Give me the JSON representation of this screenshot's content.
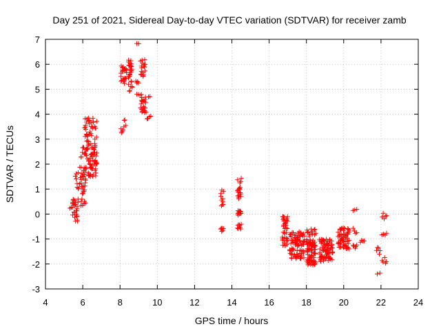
{
  "chart_data": {
    "type": "scatter",
    "title": "Day 251 of 2021, Sidereal Day-to-day VTEC variation (SDTVAR) for receiver zamb",
    "xlabel": "GPS time / hours",
    "ylabel": "SDTVAR / TECUs",
    "xlim": [
      4,
      24
    ],
    "ylim": [
      -3,
      7
    ],
    "grid": true,
    "marker": "+",
    "marker_color": "#ff0000",
    "x_ticks": [
      "4",
      "6",
      "8",
      "10",
      "12",
      "14",
      "16",
      "18",
      "20",
      "22",
      "24"
    ],
    "y_ticks": [
      "-3",
      "-2",
      "-1",
      "0",
      "1",
      "2",
      "3",
      "4",
      "5",
      "6",
      "7"
    ],
    "clusters": [
      {
        "x0": 5.3,
        "x1": 5.45,
        "y0": 0.2,
        "y1": 0.3,
        "n": 3
      },
      {
        "x0": 5.45,
        "x1": 5.75,
        "y0": -0.3,
        "y1": 0.6,
        "n": 30
      },
      {
        "x0": 5.6,
        "x1": 5.9,
        "y0": 0.9,
        "y1": 1.9,
        "n": 12
      },
      {
        "x0": 5.9,
        "x1": 6.15,
        "y0": 0.2,
        "y1": 1.9,
        "n": 30
      },
      {
        "x0": 5.9,
        "x1": 6.3,
        "y0": 2.2,
        "y1": 2.8,
        "n": 12
      },
      {
        "x0": 6.1,
        "x1": 6.75,
        "y0": 1.5,
        "y1": 3.85,
        "n": 95
      },
      {
        "x0": 6.4,
        "x1": 6.75,
        "y0": 1.8,
        "y1": 2.2,
        "n": 10
      },
      {
        "x0": 8.05,
        "x1": 8.3,
        "y0": 3.2,
        "y1": 3.8,
        "n": 8
      },
      {
        "x0": 8.05,
        "x1": 8.35,
        "y0": 5.2,
        "y1": 5.95,
        "n": 24
      },
      {
        "x0": 8.45,
        "x1": 8.65,
        "y0": 4.9,
        "y1": 6.3,
        "n": 28
      },
      {
        "x0": 8.85,
        "x1": 9.0,
        "y0": 5.25,
        "y1": 5.4,
        "n": 4
      },
      {
        "x0": 8.9,
        "x1": 9.0,
        "y0": 6.8,
        "y1": 6.85,
        "n": 2
      },
      {
        "x0": 8.9,
        "x1": 9.15,
        "y0": 4.7,
        "y1": 4.8,
        "n": 4
      },
      {
        "x0": 9.1,
        "x1": 9.35,
        "y0": 5.5,
        "y1": 6.2,
        "n": 18
      },
      {
        "x0": 9.1,
        "x1": 9.4,
        "y0": 4.0,
        "y1": 4.7,
        "n": 22
      },
      {
        "x0": 9.45,
        "x1": 9.65,
        "y0": 3.6,
        "y1": 4.85,
        "n": 6
      },
      {
        "x0": 13.4,
        "x1": 13.55,
        "y0": 0.2,
        "y1": 1.0,
        "n": 10
      },
      {
        "x0": 13.4,
        "x1": 13.55,
        "y0": -0.7,
        "y1": -0.55,
        "n": 6
      },
      {
        "x0": 14.3,
        "x1": 14.5,
        "y0": 0.6,
        "y1": 1.5,
        "n": 18
      },
      {
        "x0": 14.3,
        "x1": 14.5,
        "y0": -0.1,
        "y1": 0.15,
        "n": 10
      },
      {
        "x0": 14.3,
        "x1": 14.5,
        "y0": -0.6,
        "y1": -0.4,
        "n": 8
      },
      {
        "x0": 16.7,
        "x1": 17.0,
        "y0": -1.3,
        "y1": -0.1,
        "n": 40
      },
      {
        "x0": 17.1,
        "x1": 17.9,
        "y0": -1.8,
        "y1": -0.7,
        "n": 85
      },
      {
        "x0": 18.0,
        "x1": 18.5,
        "y0": -0.9,
        "y1": -0.5,
        "n": 14
      },
      {
        "x0": 18.0,
        "x1": 18.5,
        "y0": -2.05,
        "y1": -1.0,
        "n": 80
      },
      {
        "x0": 18.7,
        "x1": 19.4,
        "y0": -1.9,
        "y1": -1.0,
        "n": 80
      },
      {
        "x0": 19.7,
        "x1": 20.3,
        "y0": -1.4,
        "y1": -0.5,
        "n": 60
      },
      {
        "x0": 20.5,
        "x1": 20.7,
        "y0": 0.1,
        "y1": 0.25,
        "n": 3
      },
      {
        "x0": 20.5,
        "x1": 20.7,
        "y0": -0.8,
        "y1": -0.55,
        "n": 4
      },
      {
        "x0": 20.5,
        "x1": 20.7,
        "y0": -1.6,
        "y1": -1.2,
        "n": 5
      },
      {
        "x0": 20.9,
        "x1": 21.1,
        "y0": -1.2,
        "y1": -0.95,
        "n": 4
      },
      {
        "x0": 21.75,
        "x1": 21.95,
        "y0": -1.7,
        "y1": -1.3,
        "n": 5
      },
      {
        "x0": 21.8,
        "x1": 21.95,
        "y0": -2.4,
        "y1": -2.35,
        "n": 2
      },
      {
        "x0": 22.05,
        "x1": 22.3,
        "y0": -0.2,
        "y1": 0.1,
        "n": 5
      },
      {
        "x0": 22.05,
        "x1": 22.3,
        "y0": -0.9,
        "y1": -0.7,
        "n": 4
      },
      {
        "x0": 22.05,
        "x1": 22.3,
        "y0": -2.0,
        "y1": -1.7,
        "n": 5
      }
    ]
  }
}
